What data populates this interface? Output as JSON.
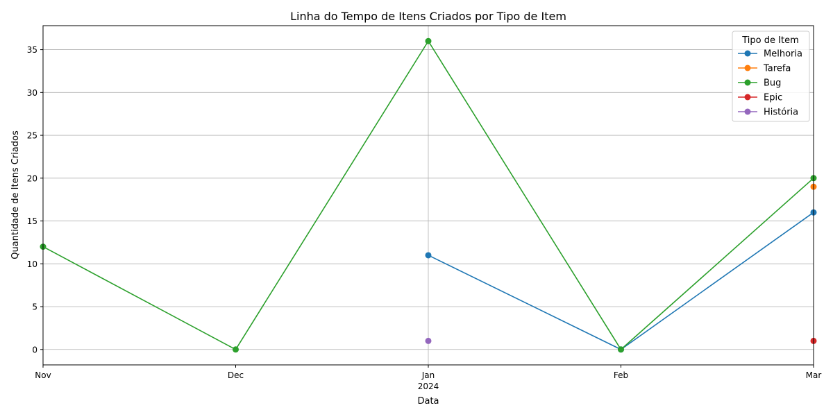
{
  "chart_data": {
    "type": "line",
    "title": "Linha do Tempo de Itens Criados por Tipo de Item",
    "xlabel": "Data",
    "ylabel": "Quantidade de Itens Criados",
    "x": [
      "2023-11",
      "2023-12",
      "2024-01",
      "2024-02",
      "2024-03"
    ],
    "x_tick_labels": [
      "Nov",
      "Dec",
      "Jan",
      "Feb",
      "Mar"
    ],
    "x_tick_sublabels": [
      "",
      "",
      "2024",
      "",
      ""
    ],
    "ylim": [
      -1.8,
      37.8
    ],
    "y_ticks": [
      0,
      5,
      10,
      15,
      20,
      25,
      30,
      35
    ],
    "grid": true,
    "legend": {
      "title": "Tipo de Item",
      "placement": "top-right"
    },
    "series": [
      {
        "name": "Melhoria",
        "color": "#1f77b4",
        "values": [
          null,
          null,
          11,
          0,
          16
        ]
      },
      {
        "name": "Tarefa",
        "color": "#ff7f0e",
        "values": [
          null,
          null,
          null,
          null,
          19
        ]
      },
      {
        "name": "Bug",
        "color": "#2ca02c",
        "values": [
          12,
          0,
          36,
          0,
          20
        ]
      },
      {
        "name": "Epic",
        "color": "#d62728",
        "values": [
          null,
          null,
          null,
          null,
          1
        ]
      },
      {
        "name": "História",
        "color": "#9467bd",
        "values": [
          null,
          null,
          1,
          null,
          null
        ]
      }
    ]
  }
}
